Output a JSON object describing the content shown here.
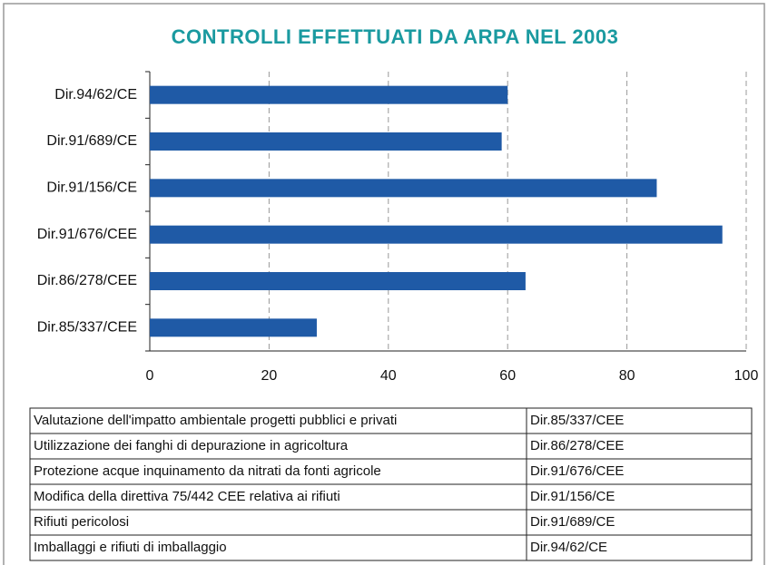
{
  "chart_data": {
    "type": "bar",
    "orientation": "horizontal",
    "title": "CONTROLLI EFFETTUATI DA ARPA NEL 2003",
    "categories": [
      "Dir.94/62/CE",
      "Dir.91/689/CE",
      "Dir.91/156/CE",
      "Dir.91/676/CEE",
      "Dir.86/278/CEE",
      "Dir.85/337/CEE"
    ],
    "values": [
      60,
      59,
      85,
      96,
      63,
      28
    ],
    "color": "#1f5aa6",
    "xlim": [
      0,
      100
    ],
    "xticks": [
      0,
      20,
      40,
      60,
      80,
      100
    ],
    "grid": true
  },
  "table": {
    "rows": [
      [
        "Valutazione dell'impatto ambientale progetti pubblici e privati",
        "Dir.85/337/CEE"
      ],
      [
        "Utilizzazione dei fanghi di depurazione in agricoltura",
        "Dir.86/278/CEE"
      ],
      [
        "Protezione acque inquinamento da nitrati da fonti agricole",
        "Dir.91/676/CEE"
      ],
      [
        "Modifica della direttiva 75/442 CEE relativa ai rifiuti",
        "Dir.91/156/CE"
      ],
      [
        "Rifiuti pericolosi",
        "Dir.91/689/CE"
      ],
      [
        "Imballaggi e rifiuti di imballaggio",
        "Dir.94/62/CE"
      ]
    ]
  }
}
